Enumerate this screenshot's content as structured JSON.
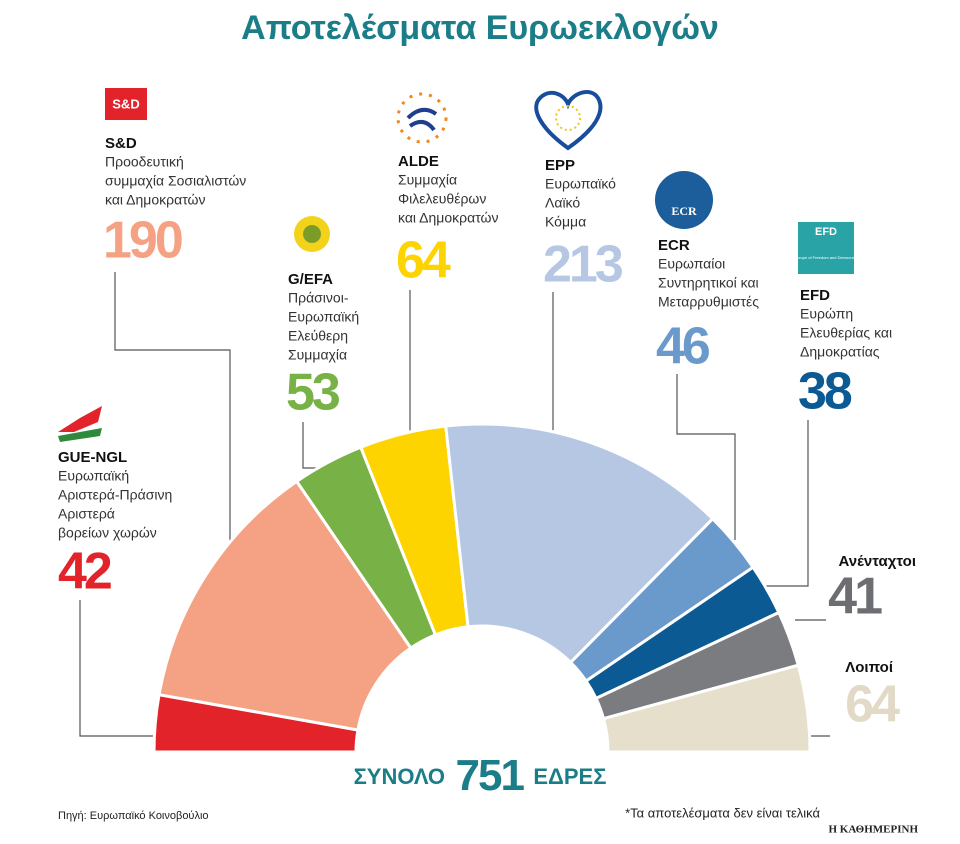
{
  "chart_data": {
    "type": "half-donut",
    "title": "Αποτελέσματα Ευρωεκλογών",
    "series": [
      {
        "name": "GUE-NGL",
        "description": [
          "Ευρωπαϊκή",
          "Αριστερά-Πράσινη",
          "Αριστερά",
          "βορείων χωρών"
        ],
        "value": 42,
        "color": "#e2232a",
        "label_color": "#e2232a"
      },
      {
        "name": "S&D",
        "description": [
          "Προοδευτική",
          "συμμαχία Σοσιαλιστών",
          "και Δημοκρατών"
        ],
        "value": 190,
        "color": "#f4a283",
        "label_color": "#f4a283"
      },
      {
        "name": "G/EFA",
        "description": [
          "Πράσινοι-",
          "Ευρωπαϊκή",
          "Ελεύθερη",
          "Συμμαχία"
        ],
        "value": 53,
        "color": "#78b145",
        "label_color": "#78b145"
      },
      {
        "name": "ALDE",
        "description": [
          "Συμμαχία",
          "Φιλελευθέρων",
          "και Δημοκρατών"
        ],
        "value": 64,
        "color": "#fdd400",
        "label_color": "#fdd400"
      },
      {
        "name": "EPP",
        "description": [
          "Ευρωπαϊκό",
          "Λαϊκό",
          "Κόμμα"
        ],
        "value": 213,
        "color": "#b6c7e4",
        "label_color": "#b6c7e4"
      },
      {
        "name": "ECR",
        "description": [
          "Ευρωπαίοι",
          "Συντηρητικοί και",
          "Μεταρρυθμιστές"
        ],
        "value": 46,
        "color": "#6a99cc",
        "label_color": "#6a99cc"
      },
      {
        "name": "EFD",
        "description": [
          "Ευρώπη",
          "Ελευθερίας και",
          "Δημοκρατίας"
        ],
        "value": 38,
        "color": "#0c5a93",
        "label_color": "#0c5a93"
      },
      {
        "name": "Ανένταχτοι",
        "description": [],
        "value": 41,
        "color": "#7b7c7f",
        "label_color": "#6d6e71"
      },
      {
        "name": "Λοιποί",
        "description": [],
        "value": 64,
        "color": "#e6dfcc",
        "label_color": "#e2dac6"
      }
    ],
    "total_prefix": "ΣΥΝΟΛΟ",
    "total": 751,
    "total_suffix": "ΕΔΡΕΣ",
    "efd_logo_text": "Europe of Freedom and Democracy",
    "source": "Πηγή: Ευρωπαϊκό Κοινοβούλιο",
    "note": "*Τα αποτελέσματα δεν είναι τελικά",
    "publisher": "Η ΚΑΘΗΜΕΡΙΝΗ"
  }
}
